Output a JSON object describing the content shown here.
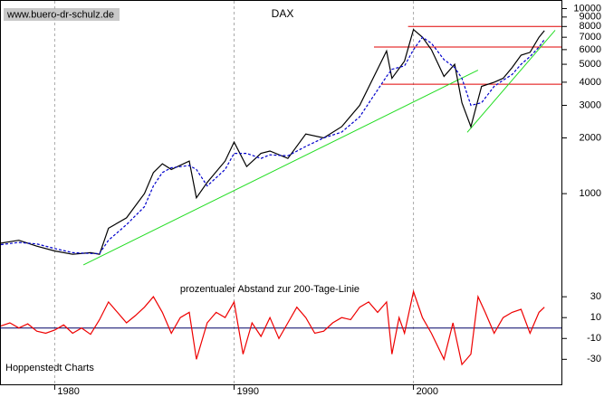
{
  "source": "www.buero-dr-schulz.de",
  "credit": "Hoppenstedt Charts",
  "chart_data": [
    {
      "type": "line",
      "title": "DAX",
      "log_y": true,
      "x": [
        1977,
        1978,
        1979,
        1980,
        1981,
        1982,
        1982.5,
        1983,
        1984,
        1985,
        1985.5,
        1986,
        1986.5,
        1987.5,
        1987.9,
        1988.5,
        1989.5,
        1990,
        1990.7,
        1991.5,
        1992,
        1993,
        1994,
        1995,
        1996,
        1997,
        1998.5,
        1998.8,
        1999.5,
        2000,
        2000.5,
        2001,
        2001.7,
        2002.3,
        2002.7,
        2003.2,
        2003.8,
        2004.5,
        2005,
        2005.5,
        2006,
        2006.5,
        2007,
        2007.3
      ],
      "series": [
        {
          "color": "#000000",
          "values": [
            540,
            560,
            520,
            490,
            470,
            480,
            470,
            650,
            740,
            1000,
            1300,
            1450,
            1350,
            1500,
            950,
            1150,
            1500,
            1900,
            1400,
            1650,
            1700,
            1550,
            2100,
            2000,
            2300,
            3000,
            5900,
            4200,
            5200,
            7700,
            7000,
            6000,
            4300,
            5000,
            3100,
            2300,
            3800,
            4000,
            4200,
            4800,
            5600,
            5800,
            7000,
            7600
          ]
        },
        {
          "color": "#0000cc",
          "dashed": true,
          "values": [
            530,
            545,
            535,
            505,
            480,
            475,
            475,
            560,
            680,
            850,
            1100,
            1300,
            1380,
            1420,
            1350,
            1100,
            1350,
            1650,
            1650,
            1550,
            1620,
            1600,
            1800,
            2000,
            2150,
            2600,
            4300,
            4700,
            4900,
            6000,
            7000,
            6500,
            5300,
            4800,
            4200,
            3000,
            3100,
            3800,
            4100,
            4400,
            5000,
            5500,
            6200,
            6800
          ]
        }
      ],
      "ylim": [
        340,
        11000
      ],
      "yticks": [
        1000,
        2000,
        3000,
        4000,
        5000,
        6000,
        7000,
        8000,
        9000,
        10000
      ],
      "xlim": [
        1977,
        2008.2
      ],
      "xticks": [
        1980,
        1990,
        2000
      ],
      "grid_x": true,
      "hlines": [
        {
          "value": 8000,
          "from": 1999.7,
          "color": "#e00000"
        },
        {
          "value": 6200,
          "from": 1997.8,
          "color": "#e00000"
        },
        {
          "value": 3900,
          "from": 1998.2,
          "color": "#e00000"
        }
      ],
      "trendlines": [
        {
          "x": [
            1981.6,
            2003.6
          ],
          "values": [
            412,
            4650
          ],
          "color": "#22dd22"
        },
        {
          "x": [
            2003.0,
            2007.9
          ],
          "values": [
            2145,
            7640
          ],
          "color": "#22dd22"
        }
      ]
    },
    {
      "type": "line",
      "title": "prozentualer Abstand zur 200-Tage-Linie",
      "x": [
        1977,
        1977.5,
        1978,
        1978.5,
        1979,
        1979.5,
        1980,
        1980.5,
        1981,
        1981.5,
        1982,
        1982.5,
        1983,
        1983.5,
        1984,
        1984.5,
        1985,
        1985.5,
        1986,
        1986.5,
        1987,
        1987.5,
        1987.9,
        1988.5,
        1989,
        1989.5,
        1990,
        1990.5,
        1991,
        1991.5,
        1992,
        1992.5,
        1993,
        1993.5,
        1994,
        1994.5,
        1995,
        1995.5,
        1996,
        1996.5,
        1997,
        1997.5,
        1998,
        1998.5,
        1998.8,
        1999.2,
        1999.5,
        2000,
        2000.5,
        2001,
        2001.7,
        2002.2,
        2002.7,
        2003.2,
        2003.6,
        2004,
        2004.5,
        2005,
        2005.5,
        2006,
        2006.5,
        2007,
        2007.3
      ],
      "series": [
        {
          "color": "#ee0000",
          "values": [
            2,
            5,
            0,
            4,
            -3,
            -5,
            -2,
            3,
            -5,
            0,
            -6,
            8,
            25,
            15,
            5,
            12,
            20,
            30,
            15,
            -5,
            10,
            15,
            -30,
            5,
            15,
            10,
            25,
            -25,
            5,
            -8,
            10,
            -10,
            5,
            20,
            10,
            -5,
            -3,
            5,
            10,
            8,
            20,
            25,
            15,
            25,
            -25,
            10,
            -5,
            35,
            10,
            -5,
            -30,
            5,
            -35,
            -25,
            30,
            15,
            -5,
            10,
            15,
            18,
            -5,
            15,
            20
          ]
        }
      ],
      "ylim": [
        -54,
        44
      ],
      "yticks": [
        -30,
        -10,
        10,
        30
      ],
      "zero_line": {
        "value": 0,
        "color": "#000066"
      }
    }
  ]
}
